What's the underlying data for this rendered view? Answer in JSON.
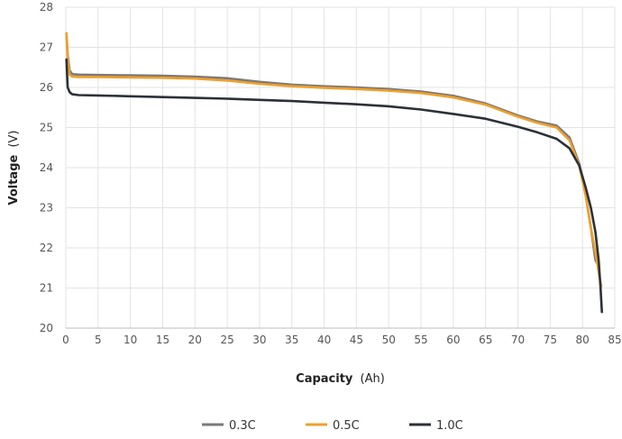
{
  "chart_data": {
    "type": "line",
    "xlabel": "Capacity (Ah)",
    "xlabel_bold": "Capacity",
    "xlabel_unit": "(Ah)",
    "ylabel": "Voltage (V)",
    "ylabel_bold": "Voltage",
    "ylabel_unit": "(V)",
    "xlim": [
      0,
      85
    ],
    "ylim": [
      20,
      28
    ],
    "xticks": [
      0,
      5,
      10,
      15,
      20,
      25,
      30,
      35,
      40,
      45,
      50,
      55,
      60,
      65,
      70,
      75,
      80,
      85
    ],
    "yticks": [
      20,
      21,
      22,
      23,
      24,
      25,
      26,
      27,
      28
    ],
    "grid": true,
    "legend_position": "bottom-center",
    "series": [
      {
        "name": "0.3C",
        "color": "#7a7a7a",
        "x": [
          0.1,
          0.3,
          0.6,
          1.0,
          2,
          5,
          10,
          15,
          20,
          25,
          30,
          35,
          40,
          45,
          50,
          55,
          60,
          65,
          70,
          73,
          76,
          78,
          79.5,
          80.5,
          81.3,
          82.0,
          82.3
        ],
        "y": [
          27.35,
          26.8,
          26.42,
          26.33,
          26.32,
          26.31,
          26.3,
          26.29,
          26.27,
          26.23,
          26.14,
          26.07,
          26.03,
          26.0,
          25.96,
          25.9,
          25.79,
          25.6,
          25.3,
          25.15,
          25.05,
          24.75,
          24.1,
          23.3,
          22.5,
          21.7,
          21.6
        ]
      },
      {
        "name": "0.5C",
        "color": "#f0a02a",
        "x": [
          0.1,
          0.3,
          0.6,
          1.0,
          2,
          5,
          10,
          15,
          20,
          25,
          30,
          35,
          40,
          45,
          50,
          55,
          60,
          65,
          70,
          73,
          76,
          78,
          79.5,
          80.5,
          81.3,
          82.0,
          82.6,
          82.9
        ],
        "y": [
          27.35,
          26.7,
          26.32,
          26.27,
          26.26,
          26.26,
          26.25,
          26.24,
          26.22,
          26.17,
          26.09,
          26.03,
          25.99,
          25.96,
          25.92,
          25.86,
          25.75,
          25.57,
          25.27,
          25.12,
          25.0,
          24.68,
          24.05,
          23.3,
          22.5,
          21.9,
          21.3,
          21.05
        ]
      },
      {
        "name": "1.0C",
        "color": "#2b3137",
        "x": [
          0.1,
          0.3,
          0.6,
          1.0,
          2,
          5,
          10,
          15,
          20,
          25,
          30,
          35,
          40,
          45,
          50,
          55,
          60,
          65,
          70,
          73,
          76,
          78,
          79.5,
          80.5,
          81.3,
          82.0,
          82.5,
          82.8,
          83.0
        ],
        "y": [
          26.7,
          26.0,
          25.88,
          25.83,
          25.81,
          25.8,
          25.78,
          25.76,
          25.74,
          25.72,
          25.69,
          25.66,
          25.62,
          25.58,
          25.53,
          25.45,
          25.34,
          25.22,
          25.02,
          24.88,
          24.72,
          24.48,
          24.05,
          23.5,
          23.0,
          22.4,
          21.7,
          21.0,
          20.4
        ]
      }
    ]
  }
}
